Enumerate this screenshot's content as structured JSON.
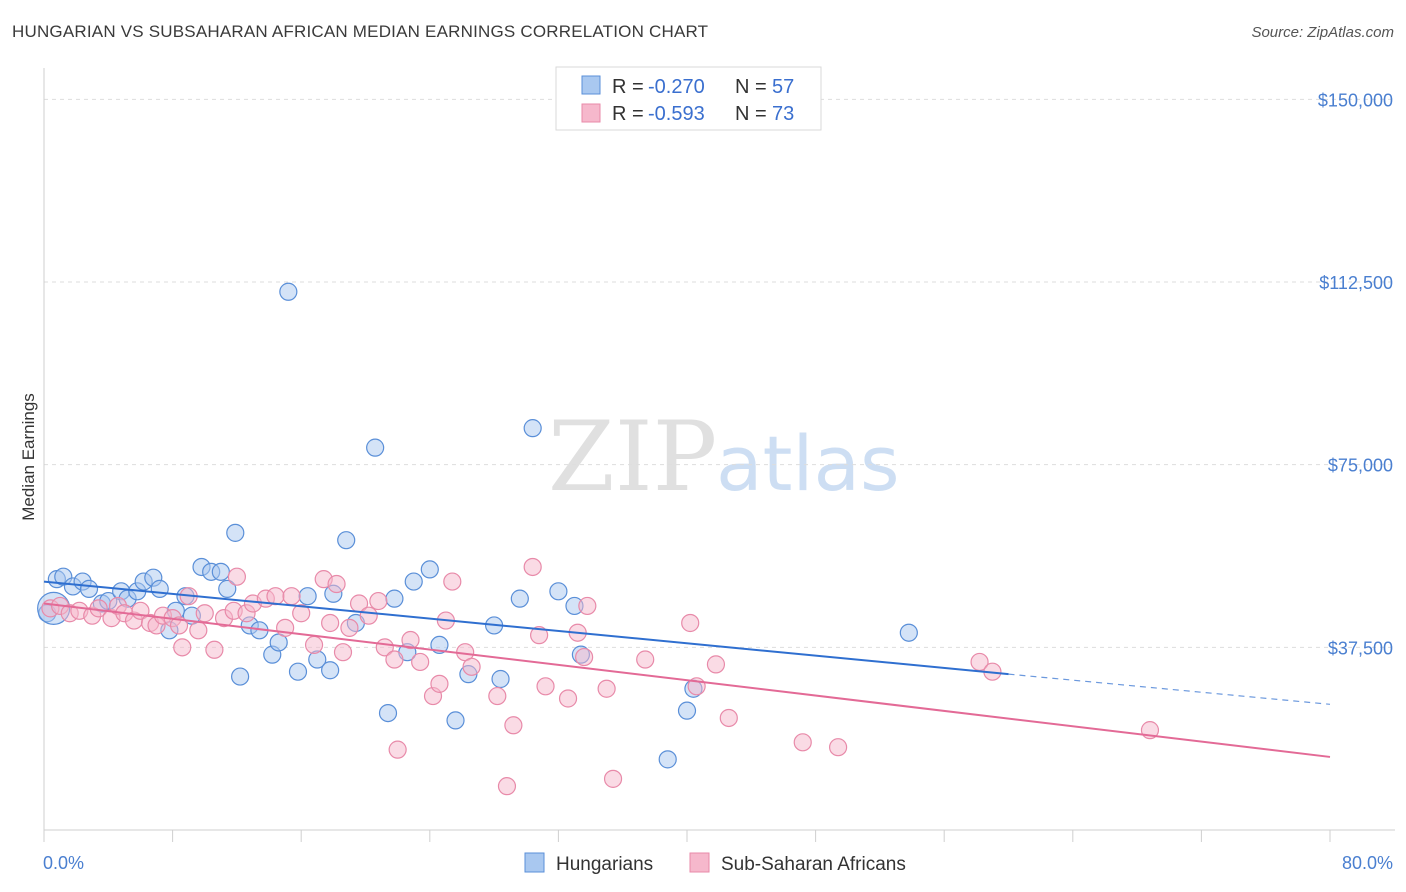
{
  "title": "HUNGARIAN VS SUBSAHARAN AFRICAN MEDIAN EARNINGS CORRELATION CHART",
  "source": "Source: ZipAtlas.com",
  "watermark": {
    "left": "ZIP",
    "right": "atlas"
  },
  "colors": {
    "blue_fill": "#a9c8f0",
    "blue_stroke": "#5a8fd8",
    "blue_line": "#2f6fd0",
    "pink_fill": "#f6b8cc",
    "pink_stroke": "#e88aa9",
    "pink_line": "#e36a96",
    "tick_text": "#4a7fd0",
    "grid": "#dddddd"
  },
  "legend": {
    "rows": [
      {
        "r_label": "R =",
        "r_value": "-0.270",
        "n_label": "N =",
        "n_value": "57",
        "series": "blue"
      },
      {
        "r_label": "R =",
        "r_value": "-0.593",
        "n_label": "N =",
        "n_value": "73",
        "series": "pink"
      }
    ]
  },
  "chart_data": {
    "type": "scatter",
    "title": "HUNGARIAN VS SUBSAHARAN AFRICAN MEDIAN EARNINGS CORRELATION CHART",
    "xlabel": "",
    "ylabel": "Median Earnings",
    "xlim": [
      0,
      80
    ],
    "ylim": [
      0,
      155000
    ],
    "x_tick_labels": [
      "0.0%",
      "80.0%"
    ],
    "y_ticks": [
      37500,
      75000,
      112500,
      150000
    ],
    "y_tick_labels": [
      "$37,500",
      "$75,000",
      "$112,500",
      "$150,000"
    ],
    "grid": true,
    "legend_position": "top-center",
    "series": [
      {
        "name": "Hungarians",
        "color": "#a9c8f0",
        "r": -0.27,
        "n": 57,
        "trend": {
          "x0": 0,
          "y0": 51000,
          "x1": 60,
          "y1": 32000,
          "dashed_to_x": 80,
          "dashed_to_y": 25800
        },
        "points": [
          [
            0.2,
            44500
          ],
          [
            0.8,
            51500
          ],
          [
            1.2,
            52000
          ],
          [
            1.8,
            50000
          ],
          [
            2.4,
            51000
          ],
          [
            2.8,
            49500
          ],
          [
            3.6,
            46500
          ],
          [
            4.0,
            47000
          ],
          [
            4.8,
            49000
          ],
          [
            5.2,
            47500
          ],
          [
            5.8,
            49000
          ],
          [
            6.2,
            51000
          ],
          [
            6.8,
            51800
          ],
          [
            7.2,
            49500
          ],
          [
            7.8,
            41000
          ],
          [
            8.2,
            45000
          ],
          [
            8.8,
            48000
          ],
          [
            9.2,
            44000
          ],
          [
            9.8,
            54000
          ],
          [
            10.4,
            53000
          ],
          [
            11.0,
            53000
          ],
          [
            11.4,
            49500
          ],
          [
            11.9,
            61000
          ],
          [
            12.2,
            31500
          ],
          [
            12.8,
            42000
          ],
          [
            13.4,
            41000
          ],
          [
            14.2,
            36000
          ],
          [
            14.6,
            38500
          ],
          [
            15.2,
            110500
          ],
          [
            15.8,
            32500
          ],
          [
            16.4,
            48000
          ],
          [
            17.0,
            35000
          ],
          [
            17.8,
            32800
          ],
          [
            18.0,
            48500
          ],
          [
            18.8,
            59500
          ],
          [
            19.4,
            42500
          ],
          [
            20.6,
            78500
          ],
          [
            21.4,
            24000
          ],
          [
            21.8,
            47500
          ],
          [
            22.6,
            36500
          ],
          [
            23.0,
            51000
          ],
          [
            24.0,
            53500
          ],
          [
            24.6,
            38000
          ],
          [
            25.6,
            22500
          ],
          [
            26.4,
            32000
          ],
          [
            28.0,
            42000
          ],
          [
            28.4,
            31000
          ],
          [
            29.6,
            47500
          ],
          [
            30.4,
            82500
          ],
          [
            32.0,
            49000
          ],
          [
            33.0,
            46000
          ],
          [
            33.4,
            36000
          ],
          [
            38.8,
            14500
          ],
          [
            40.0,
            24500
          ],
          [
            40.4,
            29000
          ],
          [
            53.8,
            40500
          ],
          [
            0.6,
            45500
          ]
        ]
      },
      {
        "name": "Sub-Saharan Africans",
        "color": "#f6b8cc",
        "r": -0.593,
        "n": 73,
        "trend": {
          "x0": 0,
          "y0": 46500,
          "x1": 80,
          "y1": 15000
        },
        "points": [
          [
            0.4,
            45500
          ],
          [
            1.0,
            46000
          ],
          [
            1.6,
            44500
          ],
          [
            2.2,
            45000
          ],
          [
            3.0,
            44000
          ],
          [
            3.4,
            45500
          ],
          [
            4.2,
            43500
          ],
          [
            4.6,
            46000
          ],
          [
            5.0,
            44500
          ],
          [
            5.6,
            43000
          ],
          [
            6.0,
            45000
          ],
          [
            6.6,
            42500
          ],
          [
            7.0,
            42000
          ],
          [
            7.4,
            44000
          ],
          [
            8.0,
            43500
          ],
          [
            8.4,
            42000
          ],
          [
            8.6,
            37500
          ],
          [
            9.0,
            48000
          ],
          [
            9.6,
            41000
          ],
          [
            10.0,
            44500
          ],
          [
            10.6,
            37000
          ],
          [
            11.2,
            43500
          ],
          [
            11.8,
            45000
          ],
          [
            12.0,
            52000
          ],
          [
            12.6,
            44500
          ],
          [
            13.0,
            46500
          ],
          [
            13.8,
            47500
          ],
          [
            14.4,
            48000
          ],
          [
            15.0,
            41500
          ],
          [
            15.4,
            48000
          ],
          [
            16.0,
            44500
          ],
          [
            16.8,
            38000
          ],
          [
            17.4,
            51500
          ],
          [
            17.8,
            42500
          ],
          [
            18.2,
            50500
          ],
          [
            18.6,
            36500
          ],
          [
            19.0,
            41500
          ],
          [
            19.6,
            46500
          ],
          [
            20.2,
            44000
          ],
          [
            20.8,
            47000
          ],
          [
            21.2,
            37500
          ],
          [
            21.8,
            35000
          ],
          [
            22.0,
            16500
          ],
          [
            22.8,
            39000
          ],
          [
            23.4,
            34500
          ],
          [
            24.2,
            27500
          ],
          [
            24.6,
            30000
          ],
          [
            25.0,
            43000
          ],
          [
            25.4,
            51000
          ],
          [
            26.2,
            36500
          ],
          [
            26.6,
            33500
          ],
          [
            28.2,
            27500
          ],
          [
            28.8,
            9000
          ],
          [
            29.2,
            21500
          ],
          [
            30.4,
            54000
          ],
          [
            30.8,
            40000
          ],
          [
            31.2,
            29500
          ],
          [
            32.6,
            27000
          ],
          [
            33.2,
            40500
          ],
          [
            33.8,
            46000
          ],
          [
            35.0,
            29000
          ],
          [
            35.4,
            10500
          ],
          [
            37.4,
            35000
          ],
          [
            40.2,
            42500
          ],
          [
            40.6,
            29500
          ],
          [
            41.8,
            34000
          ],
          [
            42.6,
            23000
          ],
          [
            47.2,
            18000
          ],
          [
            49.4,
            17000
          ],
          [
            58.2,
            34500
          ],
          [
            59.0,
            32500
          ],
          [
            68.8,
            20500
          ],
          [
            33.6,
            35500
          ]
        ]
      }
    ]
  }
}
